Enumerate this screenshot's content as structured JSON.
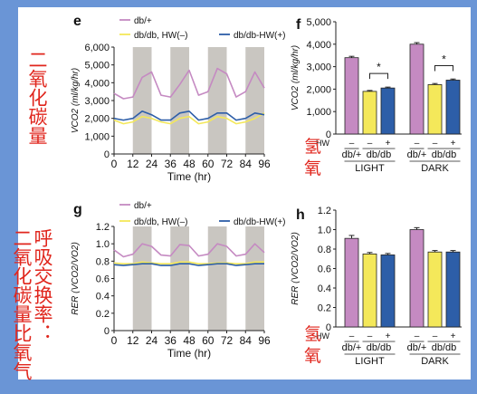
{
  "annotations": {
    "co2_label": "二氧化碳量",
    "rer_label_a": "呼吸交换率：",
    "rer_label_b": "二氧化碳量比氧气",
    "hydrogen_f": "氢",
    "oxygen_f": "氧",
    "hydrogen_h": "氢",
    "oxygen_h": "氧"
  },
  "colors": {
    "dbplus": "#c58ac2",
    "dbdb_hw_minus": "#f4e85a",
    "dbdb_hw_plus": "#2d5ea8",
    "night_shade": "#c9c6c1",
    "axis": "#222222"
  },
  "chart_data": [
    {
      "panel": "e",
      "type": "line",
      "ylabel": "VCO2 (ml/kg/hr)",
      "xlabel": "Time (hr)",
      "xlim": [
        0,
        96
      ],
      "ylim": [
        0,
        6000
      ],
      "x_ticks": [
        0,
        12,
        24,
        36,
        48,
        60,
        72,
        84,
        96
      ],
      "y_ticks": [
        "0",
        "1,000",
        "2,000",
        "3,000",
        "4,000",
        "5,000",
        "6,000"
      ],
      "shaded_intervals": [
        [
          12,
          24
        ],
        [
          36,
          48
        ],
        [
          60,
          72
        ],
        [
          84,
          96
        ]
      ],
      "legend": [
        "db/+",
        "db/db, HW(–)",
        "db/db-HW(+)"
      ],
      "series": [
        {
          "name": "db/+",
          "x": [
            0,
            6,
            12,
            18,
            24,
            30,
            36,
            42,
            48,
            54,
            60,
            66,
            72,
            78,
            84,
            90,
            96
          ],
          "values": [
            3400,
            3100,
            3200,
            4300,
            4600,
            3300,
            3200,
            3900,
            4700,
            3300,
            3500,
            4800,
            4500,
            3200,
            3500,
            4600,
            3700
          ]
        },
        {
          "name": "db/db, HW(–)",
          "x": [
            0,
            6,
            12,
            18,
            24,
            30,
            36,
            42,
            48,
            54,
            60,
            66,
            72,
            78,
            84,
            90,
            96
          ],
          "values": [
            1900,
            1700,
            1800,
            2100,
            2000,
            1800,
            1700,
            2000,
            2100,
            1700,
            1800,
            2100,
            2000,
            1700,
            1800,
            2000,
            2300
          ]
        },
        {
          "name": "db/db-HW(+)",
          "x": [
            0,
            6,
            12,
            18,
            24,
            30,
            36,
            42,
            48,
            54,
            60,
            66,
            72,
            78,
            84,
            90,
            96
          ],
          "values": [
            2000,
            1900,
            2000,
            2400,
            2200,
            1900,
            1900,
            2300,
            2400,
            1900,
            2000,
            2300,
            2300,
            1900,
            2000,
            2300,
            2200
          ]
        }
      ]
    },
    {
      "panel": "f",
      "type": "bar",
      "ylabel": "VCO2 (ml/kg/hr)",
      "ylim": [
        0,
        5000
      ],
      "y_ticks": [
        "0",
        "1,000",
        "2,000",
        "3,000",
        "4,000",
        "5,000"
      ],
      "groups": [
        "LIGHT",
        "DARK"
      ],
      "categories": [
        "db/+",
        "db/db",
        "db/db"
      ],
      "hw_row_label": "HW",
      "hw_signs": [
        "–",
        "–",
        "+",
        "–",
        "–",
        "+"
      ],
      "category_labels": [
        "db/+",
        "db/db",
        "db/+",
        "db/db"
      ],
      "significance": [
        "*",
        "*"
      ],
      "series": [
        {
          "group": "LIGHT",
          "values": [
            3400,
            1900,
            2050
          ],
          "errors": [
            60,
            40,
            40
          ]
        },
        {
          "group": "DARK",
          "values": [
            4000,
            2200,
            2400
          ],
          "errors": [
            70,
            50,
            50
          ]
        }
      ]
    },
    {
      "panel": "g",
      "type": "line",
      "ylabel": "RER (VCO2/VO2)",
      "xlabel": "Time (hr)",
      "xlim": [
        0,
        96
      ],
      "ylim": [
        0,
        1.2
      ],
      "x_ticks": [
        0,
        12,
        24,
        36,
        48,
        60,
        72,
        84,
        96
      ],
      "y_ticks": [
        "0",
        "0.2",
        "0.4",
        "0.6",
        "0.8",
        "1.0",
        "1.2"
      ],
      "shaded_intervals": [
        [
          12,
          24
        ],
        [
          36,
          48
        ],
        [
          60,
          72
        ],
        [
          84,
          96
        ]
      ],
      "legend": [
        "db/+",
        "db/db, HW(–)",
        "db/db-HW(+)"
      ],
      "series": [
        {
          "name": "db/+",
          "x": [
            0,
            6,
            12,
            18,
            24,
            30,
            36,
            42,
            48,
            54,
            60,
            66,
            72,
            78,
            84,
            90,
            96
          ],
          "values": [
            0.93,
            0.85,
            0.88,
            1.0,
            0.97,
            0.87,
            0.86,
            0.99,
            0.98,
            0.86,
            0.88,
            1.0,
            0.97,
            0.86,
            0.88,
            1.0,
            0.9
          ]
        },
        {
          "name": "db/db, HW(–)",
          "x": [
            0,
            6,
            12,
            18,
            24,
            30,
            36,
            42,
            48,
            54,
            60,
            66,
            72,
            78,
            84,
            90,
            96
          ],
          "values": [
            0.78,
            0.77,
            0.77,
            0.79,
            0.78,
            0.77,
            0.77,
            0.79,
            0.79,
            0.77,
            0.77,
            0.78,
            0.78,
            0.77,
            0.77,
            0.79,
            0.79
          ]
        },
        {
          "name": "db/db-HW(+)",
          "x": [
            0,
            6,
            12,
            18,
            24,
            30,
            36,
            42,
            48,
            54,
            60,
            66,
            72,
            78,
            84,
            90,
            96
          ],
          "values": [
            0.76,
            0.75,
            0.76,
            0.77,
            0.77,
            0.75,
            0.75,
            0.77,
            0.77,
            0.75,
            0.76,
            0.77,
            0.77,
            0.75,
            0.76,
            0.77,
            0.77
          ]
        }
      ]
    },
    {
      "panel": "h",
      "type": "bar",
      "ylabel": "RER (VCO2/VO2)",
      "ylim": [
        0,
        1.2
      ],
      "y_ticks": [
        "0",
        "0.2",
        "0.4",
        "0.6",
        "0.8",
        "1.0",
        "1.2"
      ],
      "groups": [
        "LIGHT",
        "DARK"
      ],
      "categories": [
        "db/+",
        "db/db",
        "db/db"
      ],
      "hw_row_label": "HW",
      "hw_signs": [
        "–",
        "–",
        "+",
        "–",
        "–",
        "+"
      ],
      "category_labels": [
        "db/+",
        "db/db",
        "db/+",
        "db/db"
      ],
      "series": [
        {
          "group": "LIGHT",
          "values": [
            0.91,
            0.75,
            0.74
          ],
          "errors": [
            0.03,
            0.015,
            0.015
          ]
        },
        {
          "group": "DARK",
          "values": [
            1.0,
            0.77,
            0.77
          ],
          "errors": [
            0.02,
            0.015,
            0.015
          ]
        }
      ]
    }
  ]
}
